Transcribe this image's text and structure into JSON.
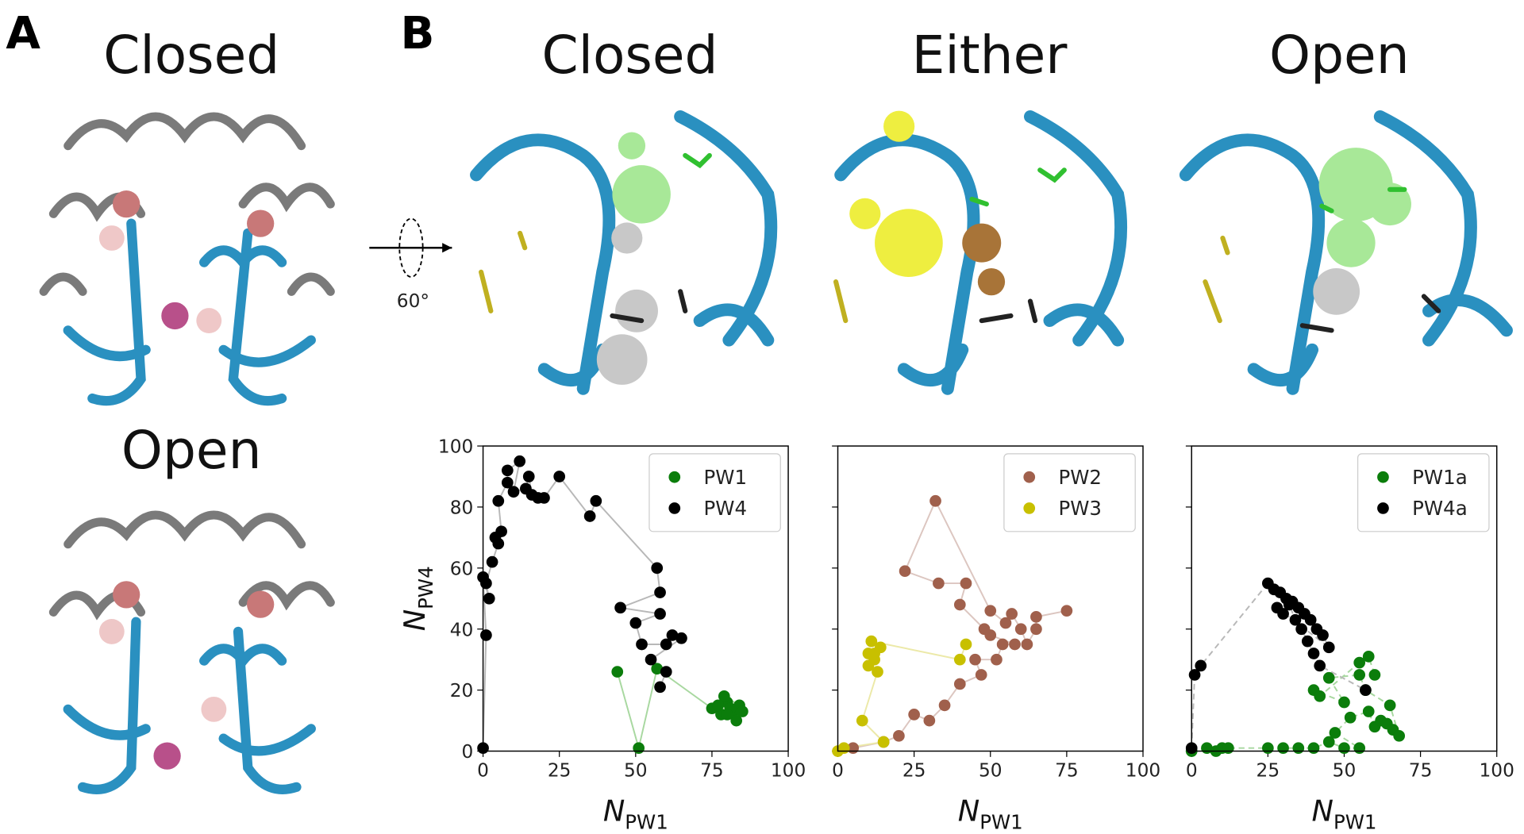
{
  "panels": {
    "a_label": "A",
    "b_label": "B",
    "a_top_title": "Closed",
    "a_bottom_title": "Open",
    "b_titles": [
      "Closed",
      "Either",
      "Open"
    ],
    "rotation": "60°"
  },
  "chart_data": [
    {
      "type": "scatter",
      "xlim": [
        0,
        100
      ],
      "ylim": [
        0,
        100
      ],
      "xticks": [
        0,
        25,
        50,
        75,
        100
      ],
      "yticks": [
        0,
        20,
        40,
        60,
        80,
        100
      ],
      "xlabel": {
        "main": "N",
        "sub": "PW1"
      },
      "ylabel": {
        "main": "N",
        "sub": "PW4"
      },
      "legend": "upper right",
      "line_style": "solid",
      "series": [
        {
          "name": "PW1",
          "color": "#0b7d0b",
          "line_color": "#a8d8a0",
          "x": [
            44,
            51,
            57,
            75,
            78,
            80,
            82,
            84,
            79,
            83,
            77,
            81,
            85,
            80
          ],
          "values": [
            26,
            1,
            27,
            14,
            12,
            16,
            13,
            15,
            18,
            10,
            15,
            14,
            13,
            12
          ]
        },
        {
          "name": "PW4",
          "color": "#000000",
          "line_color": "#b8b8b8",
          "x": [
            0,
            1,
            0,
            2,
            1,
            3,
            5,
            4,
            6,
            5,
            8,
            8,
            12,
            10,
            14,
            15,
            16,
            18,
            20,
            25,
            35,
            37,
            57,
            58,
            45,
            58,
            50,
            52,
            60,
            62,
            65,
            55,
            60,
            58
          ],
          "values": [
            1,
            38,
            57,
            50,
            55,
            62,
            68,
            70,
            72,
            82,
            88,
            92,
            95,
            85,
            86,
            90,
            84,
            83,
            83,
            90,
            77,
            82,
            60,
            52,
            47,
            45,
            42,
            35,
            35,
            38,
            37,
            30,
            26,
            21
          ]
        }
      ]
    },
    {
      "type": "scatter",
      "xlim": [
        0,
        100
      ],
      "ylim": [
        0,
        100
      ],
      "xticks": [
        0,
        25,
        50,
        75,
        100
      ],
      "xlabel": {
        "main": "N",
        "sub": "PW1"
      },
      "legend": "upper right",
      "line_style": "solid",
      "sharey": true,
      "series": [
        {
          "name": "PW2",
          "color": "#a0604c",
          "line_color": "#dcc6c0",
          "x": [
            5,
            15,
            20,
            25,
            30,
            35,
            40,
            47,
            45,
            52,
            54,
            58,
            50,
            48,
            40,
            42,
            33,
            22,
            32,
            50,
            55,
            57,
            60,
            62,
            65,
            65,
            75
          ],
          "values": [
            1,
            3,
            5,
            12,
            10,
            15,
            22,
            25,
            30,
            30,
            35,
            35,
            38,
            40,
            48,
            55,
            55,
            59,
            82,
            46,
            42,
            45,
            40,
            35,
            40,
            44,
            46
          ]
        },
        {
          "name": "PW3",
          "color": "#c8c000",
          "line_color": "#ece9a8",
          "x": [
            0,
            2,
            15,
            8,
            13,
            10,
            12,
            10,
            12,
            14,
            11,
            40,
            42
          ],
          "values": [
            0,
            1,
            3,
            10,
            26,
            28,
            30,
            32,
            32,
            34,
            36,
            30,
            35
          ]
        }
      ]
    },
    {
      "type": "scatter",
      "xlim": [
        0,
        100
      ],
      "ylim": [
        0,
        100
      ],
      "xticks": [
        0,
        25,
        50,
        75,
        100
      ],
      "xlabel": {
        "main": "N",
        "sub": "PW1"
      },
      "legend": "upper right",
      "line_style": "dashed",
      "sharey": true,
      "series": [
        {
          "name": "PW1a",
          "color": "#0b7d0b",
          "line_color": "#a8d8a0",
          "x": [
            0,
            5,
            8,
            10,
            12,
            25,
            30,
            35,
            40,
            45,
            50,
            55,
            47,
            52,
            58,
            60,
            62,
            64,
            66,
            68,
            65,
            57,
            55,
            45,
            50,
            40,
            42,
            55,
            58,
            60
          ],
          "values": [
            0,
            1,
            0,
            1,
            1,
            1,
            1,
            1,
            1,
            3,
            1,
            1,
            6,
            11,
            13,
            8,
            10,
            9,
            7,
            5,
            15,
            20,
            25,
            24,
            16,
            20,
            18,
            29,
            31,
            25
          ]
        },
        {
          "name": "PW4a",
          "color": "#000000",
          "line_color": "#b8b8b8",
          "x": [
            0,
            1,
            3,
            25,
            27,
            29,
            31,
            33,
            35,
            37,
            39,
            41,
            43,
            45,
            28,
            30,
            32,
            34,
            36,
            38,
            40,
            42,
            57
          ],
          "values": [
            1,
            25,
            28,
            55,
            53,
            52,
            50,
            49,
            47,
            45,
            43,
            40,
            38,
            34,
            47,
            45,
            48,
            43,
            40,
            36,
            32,
            28,
            20
          ]
        }
      ]
    }
  ]
}
